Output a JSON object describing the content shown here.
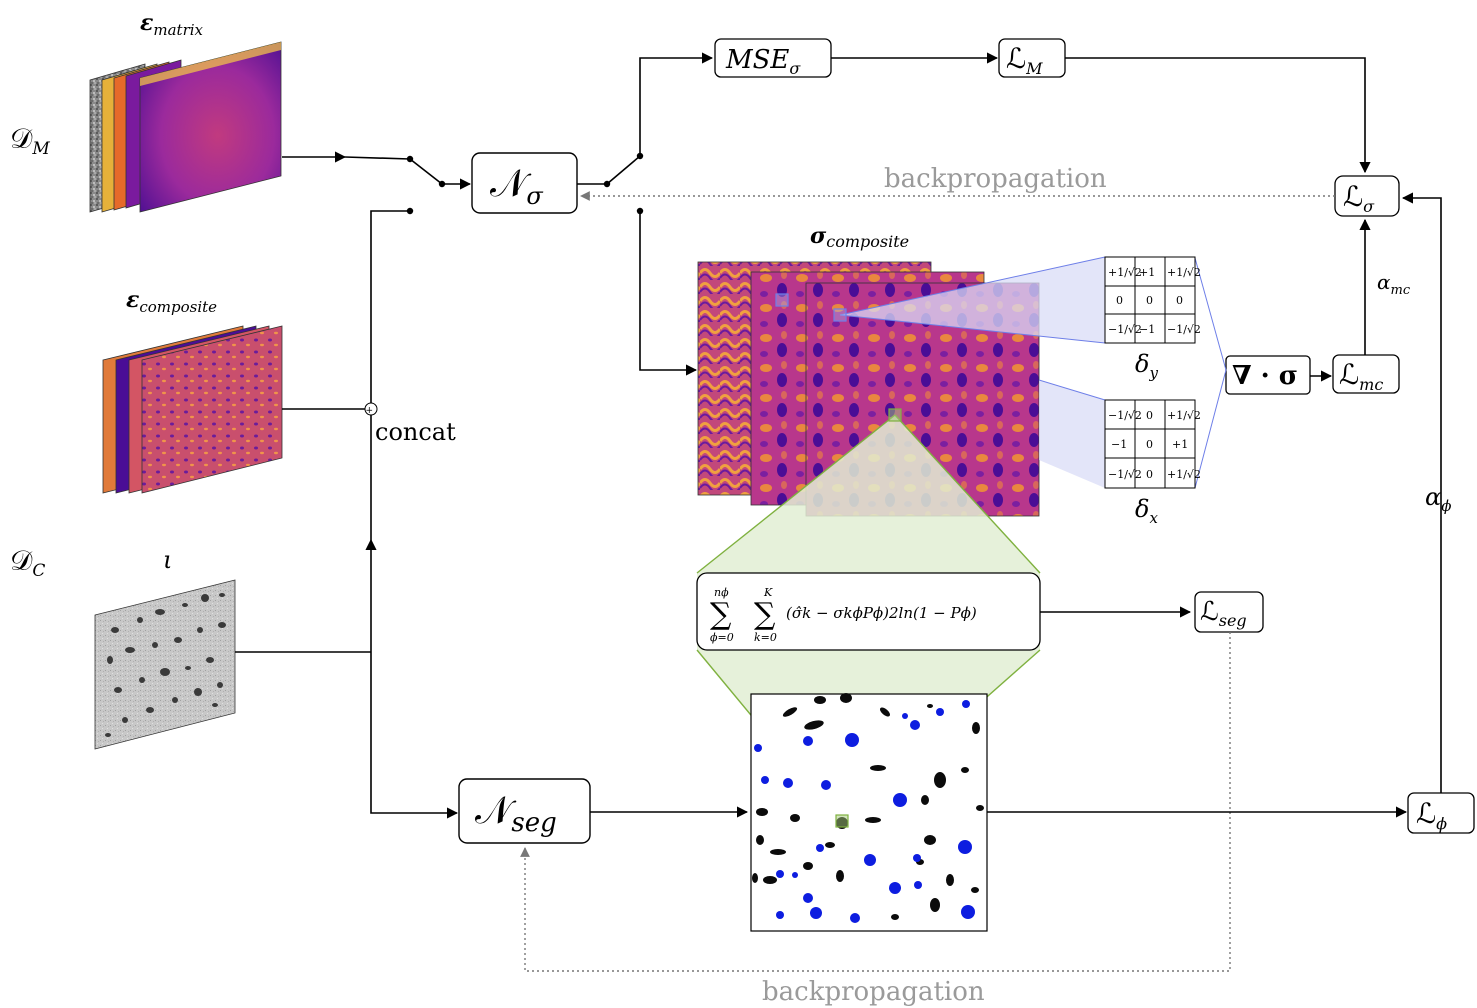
{
  "labels": {
    "eps_matrix_sym": "ε",
    "eps_matrix_sub": "matrix",
    "eps_composite_sym": "ε",
    "eps_composite_sub": "composite",
    "dm_sym": "𝒟",
    "dm_sub": "M",
    "dc_sym": "𝒟",
    "dc_sub": "C",
    "iota": "ι",
    "concat": "concat",
    "sigma_comp_sym": "σ",
    "sigma_comp_sub": "composite",
    "backprop_top": "backpropagation",
    "backprop_bottom": "backpropagation",
    "alpha_mc_sym": "α",
    "alpha_mc_sub": "mc",
    "alpha_phi_sym": "α",
    "alpha_phi_sub": "ϕ",
    "delta_y_sym": "δ",
    "delta_y_sub": "y",
    "delta_x_sym": "δ",
    "delta_x_sub": "x"
  },
  "nodes": {
    "n_sigma_sym": "𝒩",
    "n_sigma_sub": "σ",
    "n_seg_sym": "𝒩",
    "n_seg_sub": "seg",
    "mse_sym": "MSE",
    "mse_sub": "σ",
    "l_m_sym": "ℒ",
    "l_m_sub": "M",
    "l_sigma_sym": "ℒ",
    "l_sigma_sub": "σ",
    "l_mc_sym": "ℒ",
    "l_mc_sub": "mc",
    "l_seg_sym": "ℒ",
    "l_seg_sub": "seg",
    "l_phi_sym": "ℒ",
    "l_phi_sub": "ϕ",
    "divergence": "∇ · σ"
  },
  "kernels": {
    "delta_y": [
      [
        "+1/√2",
        "+1",
        "+1/√2"
      ],
      [
        "0",
        "0",
        "0"
      ],
      [
        "−1/√2",
        "−1",
        "−1/√2"
      ]
    ],
    "delta_x": [
      [
        "−1/√2",
        "0",
        "+1/√2"
      ],
      [
        "−1",
        "0",
        "+1"
      ],
      [
        "−1/√2",
        "0",
        "+1/√2"
      ]
    ]
  },
  "formula": {
    "sum1_top": "nϕ",
    "sum1_bottom": "ϕ=0",
    "sum2_top": "K",
    "sum2_bottom": "k=0",
    "body": "(σ̂k − σkϕPϕ)2ln(1 − Pϕ)"
  },
  "colors": {
    "gray_arrow": "#7a7a7a",
    "blue_fan": "#d9dcf7",
    "blue_line": "#6e7fe8",
    "green_fan": "#e2efd3",
    "green_line": "#7fb13f"
  }
}
